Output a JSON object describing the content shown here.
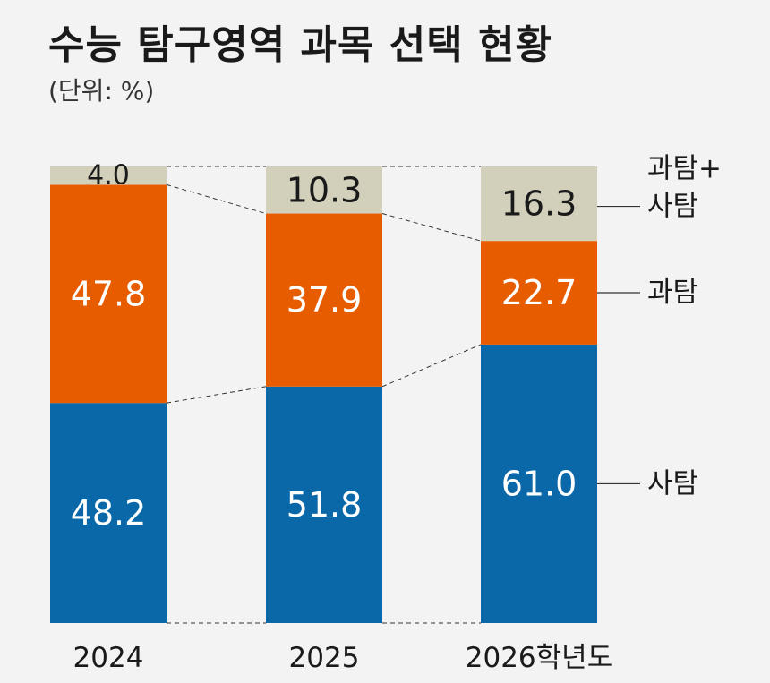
{
  "title": "수능 탐구영역 과목 선택 현황",
  "unit": "(단위: %)",
  "chart_data": {
    "type": "bar",
    "stacked": true,
    "categories": [
      "2024",
      "2025",
      "2026학년도"
    ],
    "series": [
      {
        "name": "사탐",
        "values": [
          48.2,
          51.8,
          61.0
        ],
        "labels": [
          "48.2",
          "51.8",
          "61.0"
        ],
        "color": "#0a68a9"
      },
      {
        "name": "과탐",
        "values": [
          47.8,
          37.9,
          22.7
        ],
        "labels": [
          "47.8",
          "37.9",
          "22.7"
        ],
        "color": "#e85c00"
      },
      {
        "name": "과탐+사탐",
        "values": [
          4.0,
          10.3,
          16.3
        ],
        "labels": [
          "4.0",
          "10.3",
          "16.3"
        ],
        "color": "#d2d0bb"
      }
    ],
    "legend_lines": [
      [
        "사탐"
      ],
      [
        "과탐"
      ],
      [
        "과탐+",
        "사탐"
      ]
    ],
    "ylim": [
      0,
      100
    ],
    "grid": false
  }
}
